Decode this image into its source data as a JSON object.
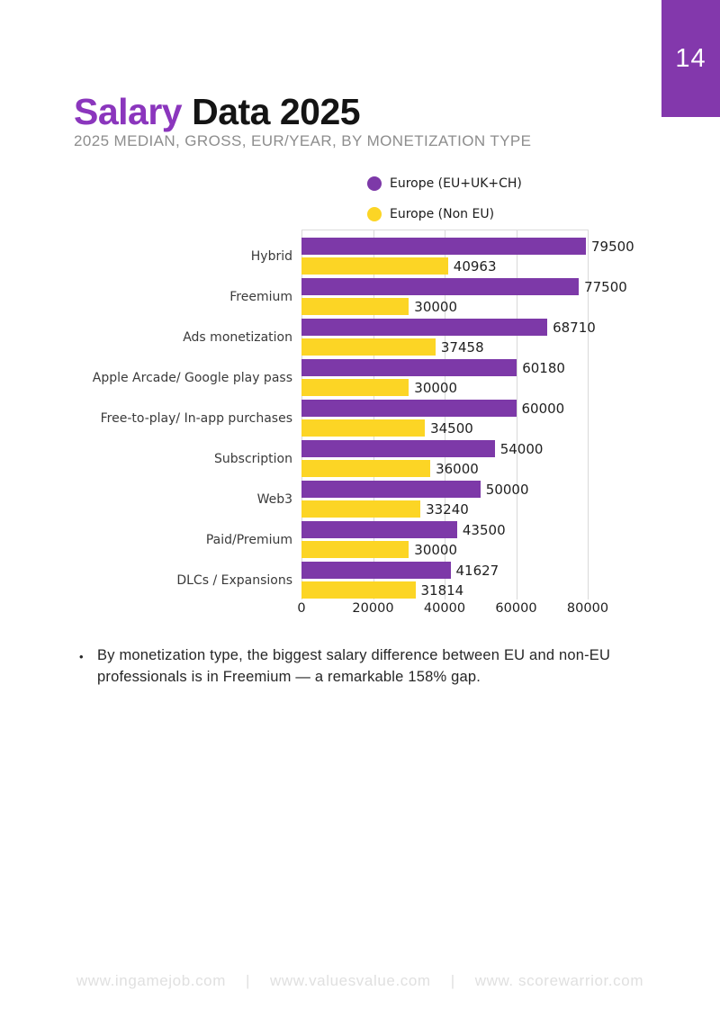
{
  "page": {
    "number": "14",
    "title": {
      "highlight": "Salary",
      "rest": "Data 2025"
    },
    "subtitle": "2025 MEDIAN, GROSS, EUR/YEAR, BY MONETIZATION TYPE",
    "bullet_marker": "•",
    "bullet": "By monetization type, the biggest salary difference between EU and non-EU professionals is in Freemium — a remarkable 158% gap.",
    "footer": {
      "links": [
        "www.ingamejob.com",
        "www.valuesvalue.com",
        "www. scorewarrior.com"
      ],
      "separator": "|"
    }
  },
  "colors": {
    "title_highlight": "#8b36bd",
    "badge_purple": "#8338ac",
    "bar_purple": "#7d39a8",
    "bar_yellow": "#fcd525",
    "gridline": "#d9d9d9",
    "subtitle_gray": "#8d8d8d",
    "footer_gray": "#e0e0e0"
  },
  "chart_data": {
    "type": "bar",
    "orientation": "horizontal",
    "title": "Salary Data 2025",
    "subtitle": "2025 MEDIAN, GROSS, EUR/YEAR, BY MONETIZATION TYPE",
    "categories": [
      "Hybrid",
      "Freemium",
      "Ads monetization",
      "Apple Arcade/ Google play pass",
      "Free-to-play/ In-app purchases",
      "Subscription",
      "Web3",
      "Paid/Premium",
      "DLCs / Expansions"
    ],
    "series": [
      {
        "name": "Europe (EU+UK+CH)",
        "color": "#7d39a8",
        "values": [
          79500,
          77500,
          68710,
          60180,
          60000,
          54000,
          50000,
          43500,
          41627
        ]
      },
      {
        "name": "Europe (Non EU)",
        "color": "#fcd525",
        "values": [
          40963,
          30000,
          37458,
          30000,
          34500,
          36000,
          33240,
          30000,
          31814
        ]
      }
    ],
    "x_ticks": [
      0,
      20000,
      40000,
      60000,
      80000
    ],
    "xlim": [
      0,
      80000
    ],
    "xlabel": "",
    "ylabel": "",
    "grid": true,
    "legend_position": "top",
    "value_labels": true
  }
}
